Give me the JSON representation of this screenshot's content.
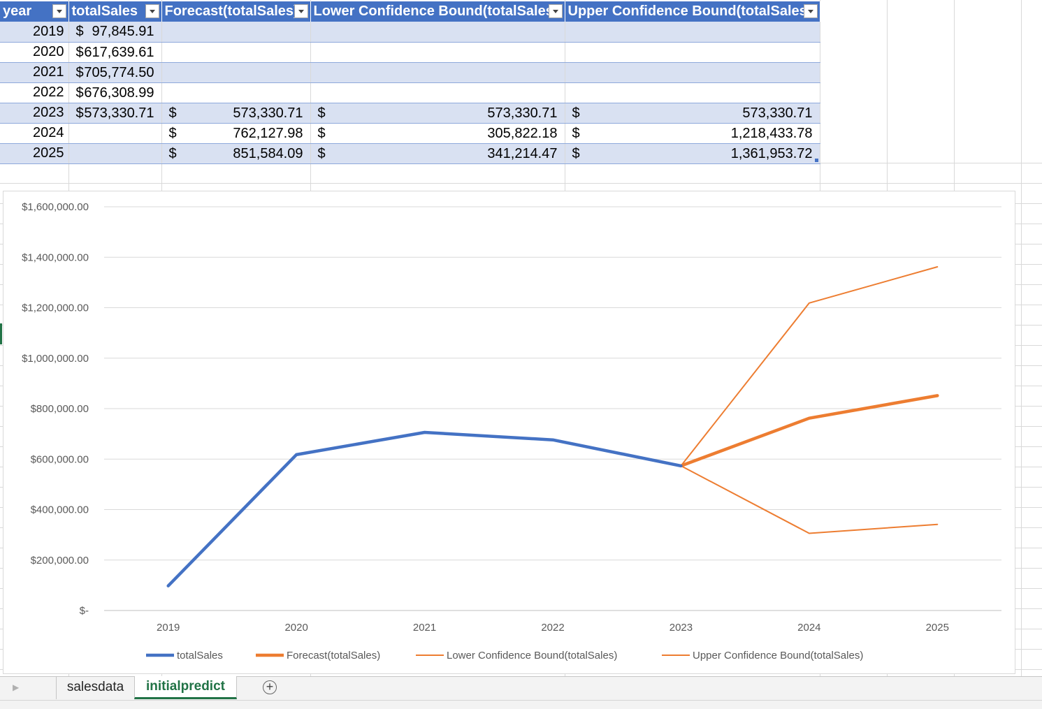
{
  "table": {
    "headers": [
      "year",
      "totalSales",
      "Forecast(totalSales)",
      "Lower Confidence Bound(totalSales)",
      "Upper Confidence Bound(totalSales)"
    ],
    "rows": [
      {
        "year": "2019",
        "sales_sym": "$",
        "sales": "97,845.91",
        "fc_sym": "",
        "fc": "",
        "lo_sym": "",
        "lo": "",
        "up_sym": "",
        "up": ""
      },
      {
        "year": "2020",
        "sales_sym": "$",
        "sales": "617,639.61",
        "fc_sym": "",
        "fc": "",
        "lo_sym": "",
        "lo": "",
        "up_sym": "",
        "up": ""
      },
      {
        "year": "2021",
        "sales_sym": "$",
        "sales": "705,774.50",
        "fc_sym": "",
        "fc": "",
        "lo_sym": "",
        "lo": "",
        "up_sym": "",
        "up": ""
      },
      {
        "year": "2022",
        "sales_sym": "$",
        "sales": "676,308.99",
        "fc_sym": "",
        "fc": "",
        "lo_sym": "",
        "lo": "",
        "up_sym": "",
        "up": ""
      },
      {
        "year": "2023",
        "sales_sym": "$",
        "sales": "573,330.71",
        "fc_sym": "$",
        "fc": "573,330.71",
        "lo_sym": "$",
        "lo": "573,330.71",
        "up_sym": "$",
        "up": "573,330.71"
      },
      {
        "year": "2024",
        "sales_sym": "",
        "sales": "",
        "fc_sym": "$",
        "fc": "762,127.98",
        "lo_sym": "$",
        "lo": "305,822.18",
        "up_sym": "$",
        "up": "1,218,433.78"
      },
      {
        "year": "2025",
        "sales_sym": "",
        "sales": "",
        "fc_sym": "$",
        "fc": "851,584.09",
        "lo_sym": "$",
        "lo": "341,214.47",
        "up_sym": "$",
        "up": "1,361,953.72"
      }
    ]
  },
  "chart_data": {
    "type": "line",
    "title": "",
    "xlabel": "",
    "ylabel": "",
    "categories": [
      "2019",
      "2020",
      "2021",
      "2022",
      "2023",
      "2024",
      "2025"
    ],
    "y_tick_labels": [
      "$-",
      "$200,000.00",
      "$400,000.00",
      "$600,000.00",
      "$800,000.00",
      "$1,000,000.00",
      "$1,200,000.00",
      "$1,400,000.00",
      "$1,600,000.00"
    ],
    "ylim": [
      0,
      1600000
    ],
    "y_step": 200000,
    "grid": true,
    "legend_position": "bottom",
    "series": [
      {
        "name": "totalSales",
        "color": "#4472c4",
        "weight": "thick",
        "values": [
          97845.91,
          617639.61,
          705774.5,
          676308.99,
          573330.71,
          null,
          null
        ]
      },
      {
        "name": "Forecast(totalSales)",
        "color": "#ed7d31",
        "weight": "thick",
        "values": [
          null,
          null,
          null,
          null,
          573330.71,
          762127.98,
          851584.09
        ]
      },
      {
        "name": "Lower Confidence Bound(totalSales)",
        "color": "#ed7d31",
        "weight": "thin",
        "values": [
          null,
          null,
          null,
          null,
          573330.71,
          305822.18,
          341214.47
        ]
      },
      {
        "name": "Upper Confidence Bound(totalSales)",
        "color": "#ed7d31",
        "weight": "thin",
        "values": [
          null,
          null,
          null,
          null,
          573330.71,
          1218433.78,
          1361953.72
        ]
      }
    ]
  },
  "sheets": {
    "tabs": [
      "salesdata",
      "initialpredict"
    ],
    "active": "initialpredict",
    "add_symbol": "+"
  }
}
